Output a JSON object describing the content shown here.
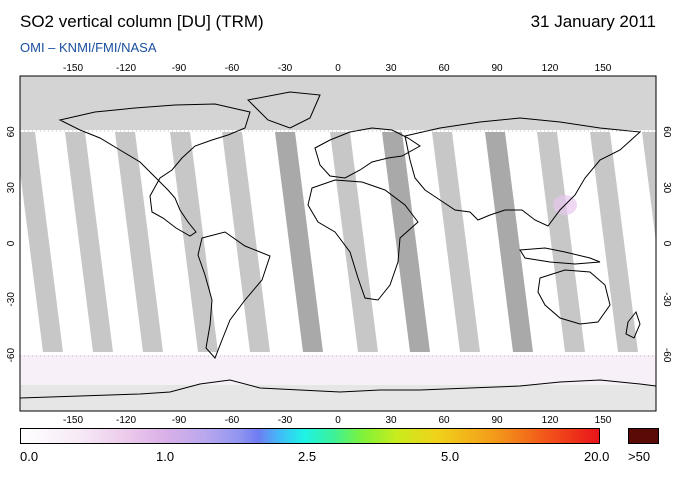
{
  "header": {
    "title": "SO2 vertical column [DU] (TRM)",
    "date": "31 January 2011",
    "subtitle": "OMI  –  KNMI/FMI/NASA"
  },
  "map": {
    "lon_ticks": [
      "-150",
      "-120",
      "-90",
      "-60",
      "-30",
      "0",
      "30",
      "60",
      "90",
      "120",
      "150"
    ],
    "lat_ticks": [
      "60",
      "30",
      "0",
      "-30",
      "-60"
    ],
    "colors": {
      "no_data": "#d4d4d4",
      "swath_gap": "#c7c7c7",
      "swath_gap_dark": "#a9a9a9",
      "coast": "#000000"
    }
  },
  "colorbar": {
    "labels": [
      "0.0",
      "1.0",
      "2.5",
      "5.0",
      "20.0"
    ],
    "overflow_label": ">50",
    "overflow_color": "#5a0a07"
  }
}
